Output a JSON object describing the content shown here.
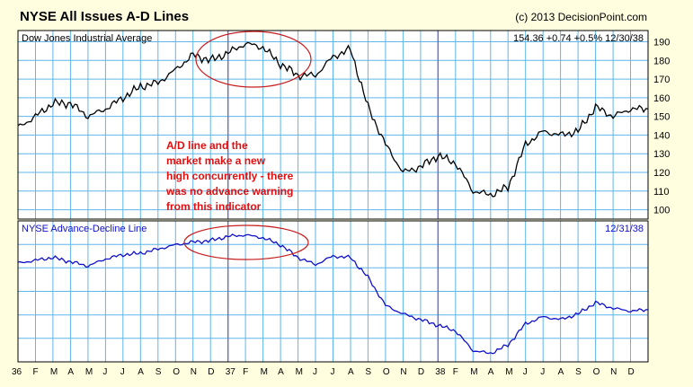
{
  "title": "NYSE All Issues A-D Lines",
  "credit": "(c) 2013 DecisionPoint.com",
  "colors": {
    "background": "#ffffe0",
    "panel": "#ffffff",
    "grid": "#5eb6ea",
    "event_line": "#6a5acd",
    "price_line": "#000000",
    "ad_line": "#1010c8",
    "ellipse": "#c81e1e",
    "note": "#e01010"
  },
  "annotation": "A/D line and the market make a new high concurrently - there was no advance warning from this indicator",
  "chart_data": [
    {
      "type": "line",
      "panel_label": "Dow Jones Industrial Average",
      "label_color": "#000000",
      "readout": "154.36  +0.74  +0.5%  12/30/38",
      "ylim": [
        95,
        196
      ],
      "yticks": [
        100,
        110,
        120,
        130,
        140,
        150,
        160,
        170,
        180,
        190
      ],
      "x": [
        "36-01",
        "36-02",
        "36-03",
        "36-04",
        "36-05",
        "36-06",
        "36-07",
        "36-08",
        "36-09",
        "36-10",
        "36-11",
        "36-12",
        "37-01",
        "37-02",
        "37-03",
        "37-04",
        "37-05",
        "37-06",
        "37-07",
        "37-08",
        "37-09",
        "37-10",
        "37-11",
        "37-12",
        "38-01",
        "38-02",
        "38-03",
        "38-04",
        "38-05",
        "38-06",
        "38-07",
        "38-08",
        "38-09",
        "38-10",
        "38-11",
        "38-12",
        "38-12e"
      ],
      "series": [
        {
          "values": [
            144,
            150,
            157,
            157,
            150,
            154,
            160,
            166,
            168,
            175,
            183,
            180,
            184,
            189,
            187,
            178,
            172,
            172,
            182,
            186,
            155,
            135,
            120,
            123,
            129,
            125,
            110,
            108,
            112,
            135,
            142,
            140,
            142,
            155,
            150,
            154,
            154
          ]
        }
      ],
      "grid": true
    },
    {
      "type": "line",
      "panel_label": "NYSE Advance-Decline Line",
      "label_color": "#1010c8",
      "readout": "12/31/38",
      "ylim": [
        0,
        100
      ],
      "series": [
        {
          "values": [
            70,
            72,
            74,
            71,
            68,
            73,
            76,
            77,
            80,
            83,
            85,
            86,
            89,
            90,
            88,
            83,
            74,
            69,
            75,
            74,
            60,
            40,
            34,
            30,
            26,
            22,
            8,
            6,
            12,
            27,
            32,
            30,
            34,
            42,
            38,
            36,
            37
          ]
        }
      ],
      "grid": true
    }
  ],
  "x_axis_labels": [
    "36",
    "F",
    "M",
    "A",
    "M",
    "J",
    "J",
    "A",
    "S",
    "O",
    "N",
    "D",
    "37",
    "F",
    "M",
    "A",
    "M",
    "J",
    "J",
    "A",
    "S",
    "O",
    "N",
    "D",
    "38",
    "F",
    "M",
    "A",
    "M",
    "J",
    "J",
    "A",
    "S",
    "O",
    "N",
    "D"
  ]
}
